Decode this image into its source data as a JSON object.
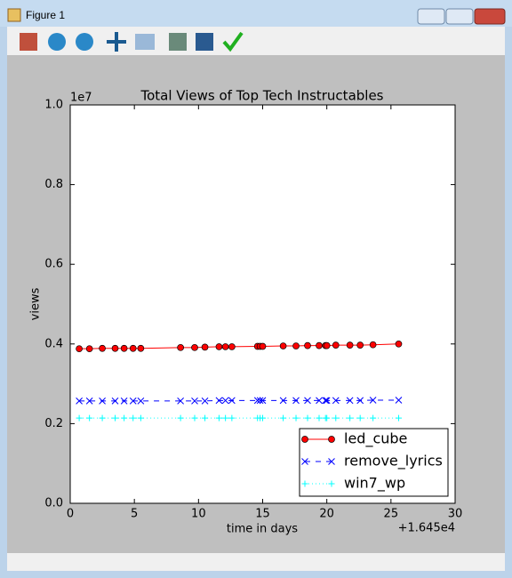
{
  "window": {
    "title": "Figure 1"
  },
  "chart_data": {
    "type": "line",
    "title": "Total Views of Top Tech Instructables",
    "x_label": "time in days",
    "y_label": "views",
    "x_offset_label": "+1.645e4",
    "y_offset_label": "1e7",
    "x": [
      0.7,
      1.5,
      2.5,
      3.5,
      4.2,
      4.9,
      5.5,
      8.6,
      9.7,
      10.5,
      11.6,
      12.1,
      12.6,
      14.6,
      14.8,
      15.0,
      16.6,
      17.6,
      18.5,
      19.4,
      19.9,
      20.0,
      20.7,
      21.8,
      22.6,
      23.6,
      25.6
    ],
    "series": [
      {
        "name": "led_cube",
        "color": "#ff0000",
        "marker": "o",
        "line_style": "solid",
        "values": [
          0.388,
          0.388,
          0.389,
          0.389,
          0.389,
          0.389,
          0.389,
          0.391,
          0.391,
          0.392,
          0.393,
          0.393,
          0.393,
          0.394,
          0.394,
          0.394,
          0.395,
          0.395,
          0.396,
          0.396,
          0.396,
          0.396,
          0.397,
          0.397,
          0.397,
          0.398,
          0.4
        ]
      },
      {
        "name": "remove_lyrics",
        "color": "#0000ff",
        "marker": "x",
        "line_style": "dashed",
        "values": [
          0.257,
          0.257,
          0.257,
          0.257,
          0.257,
          0.257,
          0.257,
          0.257,
          0.257,
          0.257,
          0.258,
          0.258,
          0.258,
          0.258,
          0.258,
          0.258,
          0.258,
          0.258,
          0.258,
          0.258,
          0.258,
          0.258,
          0.258,
          0.258,
          0.258,
          0.259,
          0.259
        ]
      },
      {
        "name": "win7_wp",
        "color": "#00ffff",
        "marker": "+",
        "line_style": "dotted",
        "values": [
          0.214,
          0.214,
          0.214,
          0.214,
          0.214,
          0.214,
          0.214,
          0.214,
          0.214,
          0.214,
          0.214,
          0.214,
          0.214,
          0.214,
          0.214,
          0.214,
          0.214,
          0.214,
          0.214,
          0.214,
          0.214,
          0.214,
          0.214,
          0.214,
          0.214,
          0.214,
          0.214
        ]
      }
    ],
    "xlim": [
      0,
      30
    ],
    "xticks": [
      0,
      5,
      10,
      15,
      20,
      25,
      30
    ],
    "ylim": [
      0,
      1
    ],
    "yticks": [
      {
        "value": 0,
        "label": "0.0"
      },
      0.2,
      0.4,
      0.6,
      0.8,
      {
        "value": 1,
        "label": "1.0"
      }
    ],
    "grid": false,
    "legend_position": "lower right"
  }
}
